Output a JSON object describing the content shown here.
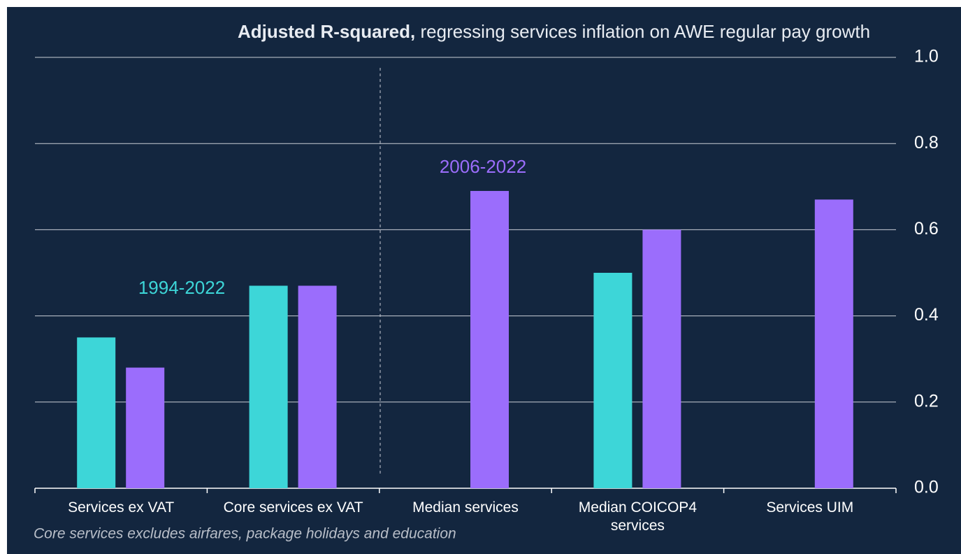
{
  "chart_data": {
    "type": "bar",
    "title_bold": "Adjusted R-squared,",
    "title": "regressing services inflation on AWE regular pay growth",
    "footnote": "Core services excludes airfares, package holidays and education",
    "categories": [
      "Services ex VAT",
      "Core services ex VAT",
      "Median services",
      "Median COICOP4 services",
      "Services UIM"
    ],
    "series": [
      {
        "name": "1994-2022",
        "color": "#3dd6d8",
        "values": [
          0.35,
          0.47,
          null,
          0.5,
          null
        ]
      },
      {
        "name": "2006-2022",
        "color": "#9b6dfc",
        "values": [
          0.28,
          0.47,
          0.69,
          0.6,
          0.67
        ]
      }
    ],
    "ylim": [
      0,
      1
    ],
    "yticks": [
      {
        "value": 0,
        "label": "0.0"
      },
      0.2,
      0.4,
      0.6,
      0.8,
      {
        "value": 1,
        "label": "1.0"
      }
    ],
    "grid": true
  }
}
